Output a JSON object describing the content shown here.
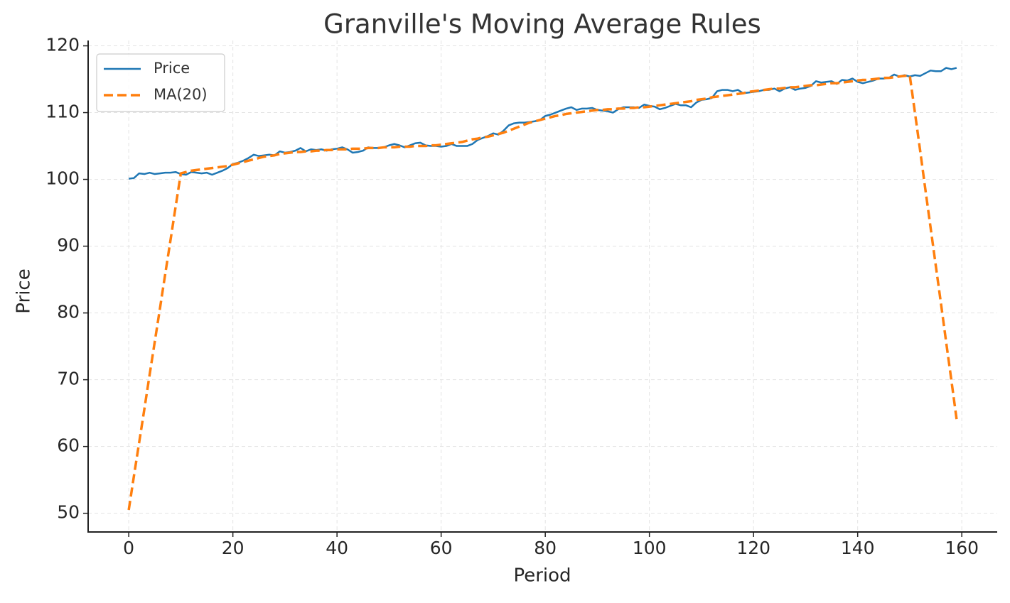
{
  "chart_data": {
    "type": "line",
    "title": "Granville's Moving Average Rules",
    "x_label": "Period",
    "y_label": "Price",
    "x": [
      0,
      1,
      2,
      3,
      4,
      5,
      6,
      7,
      8,
      9,
      10,
      11,
      12,
      13,
      14,
      15,
      16,
      17,
      18,
      19,
      20,
      21,
      22,
      23,
      24,
      25,
      26,
      27,
      28,
      29,
      30,
      31,
      32,
      33,
      34,
      35,
      36,
      37,
      38,
      39,
      40,
      41,
      42,
      43,
      44,
      45,
      46,
      47,
      48,
      49,
      50,
      51,
      52,
      53,
      54,
      55,
      56,
      57,
      58,
      59,
      60,
      61,
      62,
      63,
      64,
      65,
      66,
      67,
      68,
      69,
      70,
      71,
      72,
      73,
      74,
      75,
      76,
      77,
      78,
      79,
      80,
      81,
      82,
      83,
      84,
      85,
      86,
      87,
      88,
      89,
      90,
      91,
      92,
      93,
      94,
      95,
      96,
      97,
      98,
      99,
      100,
      101,
      102,
      103,
      104,
      105,
      106,
      107,
      108,
      109,
      110,
      111,
      112,
      113,
      114,
      115,
      116,
      117,
      118,
      119,
      120,
      121,
      122,
      123,
      124,
      125,
      126,
      127,
      128,
      129,
      130,
      131,
      132,
      133,
      134,
      135,
      136,
      137,
      138,
      139,
      140,
      141,
      142,
      143,
      144,
      145,
      146,
      147,
      148,
      149,
      150,
      151,
      152,
      153,
      154,
      155,
      156,
      157,
      158,
      159
    ],
    "series": [
      {
        "name": "Price",
        "color": "#1f77b4",
        "dashed": false,
        "values": [
          100.1,
          100.2,
          100.9,
          100.8,
          101.0,
          100.8,
          100.9,
          101.0,
          101.0,
          101.1,
          100.8,
          100.7,
          101.1,
          101.0,
          100.9,
          101.0,
          100.7,
          101.0,
          101.3,
          101.7,
          102.3,
          102.5,
          102.8,
          103.2,
          103.7,
          103.5,
          103.6,
          103.7,
          103.6,
          104.2,
          104.0,
          104.1,
          104.3,
          104.7,
          104.2,
          104.5,
          104.4,
          104.5,
          104.3,
          104.5,
          104.6,
          104.8,
          104.5,
          104.0,
          104.1,
          104.3,
          104.8,
          104.7,
          104.7,
          104.8,
          105.1,
          105.3,
          105.1,
          104.8,
          105.1,
          105.4,
          105.5,
          105.1,
          105.0,
          105.0,
          104.9,
          105.0,
          105.3,
          105.0,
          105.0,
          105.0,
          105.3,
          105.9,
          106.2,
          106.5,
          106.9,
          106.7,
          107.3,
          108.1,
          108.4,
          108.5,
          108.5,
          108.6,
          108.7,
          108.9,
          109.5,
          109.7,
          110.0,
          110.3,
          110.6,
          110.8,
          110.4,
          110.6,
          110.6,
          110.7,
          110.4,
          110.3,
          110.2,
          110.0,
          110.5,
          110.8,
          110.8,
          110.8,
          110.7,
          111.2,
          111.0,
          110.9,
          110.5,
          110.7,
          111.0,
          111.3,
          111.1,
          111.1,
          110.8,
          111.5,
          111.9,
          112.0,
          112.2,
          113.2,
          113.4,
          113.4,
          113.2,
          113.4,
          112.9,
          113.0,
          113.1,
          113.2,
          113.4,
          113.4,
          113.6,
          113.2,
          113.6,
          113.8,
          113.4,
          113.6,
          113.7,
          114.0,
          114.7,
          114.5,
          114.6,
          114.7,
          114.3,
          114.9,
          114.8,
          115.1,
          114.6,
          114.4,
          114.6,
          114.8,
          115.1,
          115.1,
          115.2,
          115.7,
          115.4,
          115.6,
          115.4,
          115.6,
          115.5,
          115.9,
          116.3,
          116.2,
          116.2,
          116.7,
          116.5,
          116.7
        ]
      },
      {
        "name": "MA(20)",
        "color": "#ff7f0e",
        "dashed": true,
        "values": [
          50.5,
          55.6,
          60.6,
          65.6,
          70.7,
          75.7,
          80.7,
          85.8,
          90.8,
          95.9,
          100.9,
          101.1,
          101.3,
          101.4,
          101.5,
          101.6,
          101.7,
          101.8,
          101.9,
          102.0,
          102.2,
          102.4,
          102.6,
          102.8,
          103.0,
          103.2,
          103.4,
          103.5,
          103.6,
          103.8,
          103.9,
          104.0,
          104.1,
          104.1,
          104.2,
          104.2,
          104.3,
          104.3,
          104.4,
          104.4,
          104.5,
          104.5,
          104.5,
          104.6,
          104.6,
          104.6,
          104.7,
          104.7,
          104.7,
          104.8,
          104.8,
          104.8,
          104.9,
          104.9,
          104.9,
          105.0,
          105.0,
          105.0,
          105.1,
          105.1,
          105.2,
          105.3,
          105.4,
          105.5,
          105.6,
          105.8,
          106.0,
          106.1,
          106.3,
          106.4,
          106.6,
          106.8,
          107.0,
          107.3,
          107.6,
          107.9,
          108.2,
          108.5,
          108.7,
          108.9,
          109.1,
          109.3,
          109.5,
          109.6,
          109.8,
          109.9,
          110.0,
          110.1,
          110.2,
          110.3,
          110.4,
          110.4,
          110.5,
          110.5,
          110.6,
          110.6,
          110.7,
          110.7,
          110.8,
          110.8,
          110.9,
          111.0,
          111.1,
          111.2,
          111.3,
          111.4,
          111.5,
          111.6,
          111.7,
          111.9,
          112.0,
          112.1,
          112.3,
          112.4,
          112.5,
          112.6,
          112.7,
          112.8,
          112.9,
          113.1,
          113.2,
          113.3,
          113.4,
          113.5,
          113.6,
          113.6,
          113.7,
          113.8,
          113.8,
          113.9,
          114.0,
          114.1,
          114.1,
          114.2,
          114.3,
          114.4,
          114.4,
          114.5,
          114.6,
          114.7,
          114.8,
          114.9,
          114.9,
          115.0,
          115.1,
          115.2,
          115.2,
          115.3,
          115.4,
          115.5,
          115.6,
          110.0,
          104.3,
          98.5,
          92.8,
          87.1,
          81.4,
          75.6,
          69.9,
          64.1
        ]
      }
    ],
    "xlim": [
      -7.8,
      166.8
    ],
    "ylim": [
      47.2,
      120.8
    ],
    "xticks": [
      0,
      20,
      40,
      60,
      80,
      100,
      120,
      140,
      160
    ],
    "yticks": [
      50,
      60,
      70,
      80,
      90,
      100,
      110,
      120
    ],
    "grid": true,
    "legend": "upper left"
  }
}
